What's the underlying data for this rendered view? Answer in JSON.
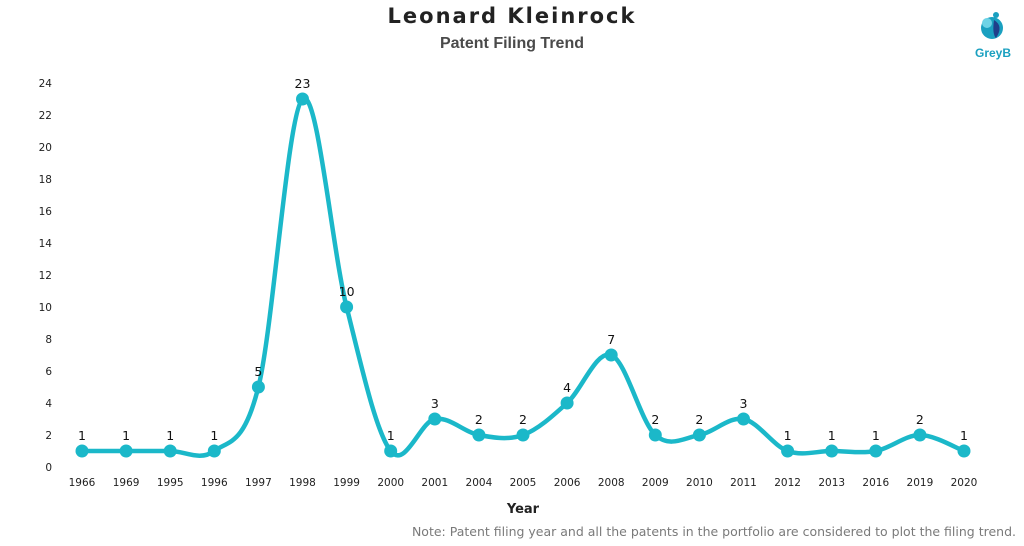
{
  "chart_data": {
    "type": "line",
    "title": "Leonard Kleinrock",
    "subtitle": "Patent Filing Trend",
    "xlabel": "Year",
    "ylabel": "",
    "categories": [
      "1966",
      "1969",
      "1995",
      "1996",
      "1997",
      "1998",
      "1999",
      "2000",
      "2001",
      "2004",
      "2005",
      "2006",
      "2008",
      "2009",
      "2010",
      "2011",
      "2012",
      "2013",
      "2016",
      "2019",
      "2020"
    ],
    "values": [
      1,
      1,
      1,
      1,
      5,
      23,
      10,
      1,
      3,
      2,
      2,
      4,
      7,
      2,
      2,
      3,
      1,
      1,
      1,
      2,
      1
    ],
    "ylim": [
      0,
      24
    ],
    "yticks": [
      "0",
      "2",
      "4",
      "6",
      "8",
      "10",
      "12",
      "14",
      "16",
      "18",
      "20",
      "22",
      "24"
    ],
    "grid": false,
    "line_color": "#1bb8c9",
    "smooth": true,
    "data_labels": true
  },
  "logo": {
    "text": "GreyB",
    "color": "#1aa0c0"
  },
  "note": "Note: Patent filing year and all the patents in the portfolio are considered to plot the filing trend."
}
